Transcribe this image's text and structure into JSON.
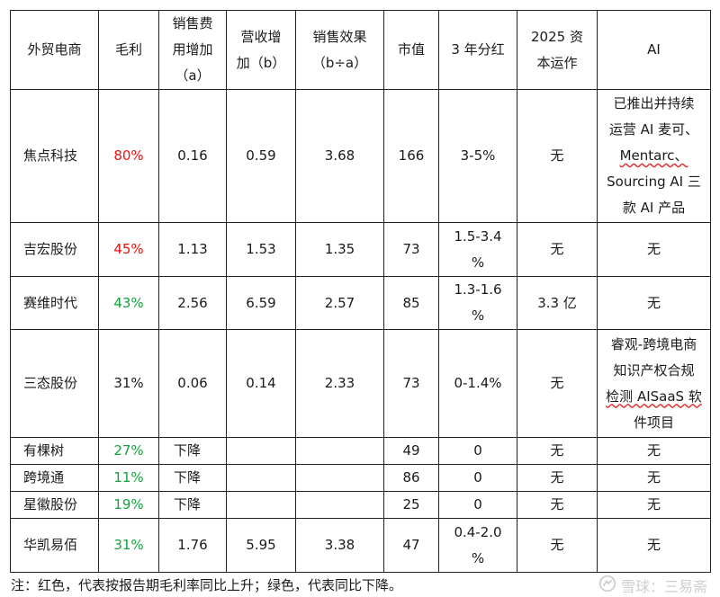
{
  "headers": {
    "company": "外贸电商",
    "margin": "毛利",
    "sales_exp_1": "销售费",
    "sales_exp_2": "用增加",
    "sales_exp_3": "（a）",
    "rev_1": "营收增",
    "rev_2": "加（b）",
    "effect_1": "销售效果",
    "effect_2": "（b÷a）",
    "mcap": "市值",
    "dividend": "3 年分红",
    "capital_1": "2025 资",
    "capital_2": "本运作",
    "ai": "AI"
  },
  "rows": [
    {
      "company": "焦点科技",
      "margin": "80%",
      "sales": "0.16",
      "rev": "0.59",
      "effect": "3.68",
      "mcap": "166",
      "dividend": "3-5%",
      "capital": "无",
      "ai_lines": [
        "已推出并持续",
        "运营 AI 麦可、",
        "Mentarc、",
        "Sourcing AI 三",
        "款 AI 产品"
      ]
    },
    {
      "company": "吉宏股份",
      "margin": "45%",
      "sales": "1.13",
      "rev": "1.53",
      "effect": "1.35",
      "mcap": "73",
      "dividend_lines": [
        "1.5-3.4",
        "%"
      ],
      "capital": "无",
      "ai": "无"
    },
    {
      "company": "赛维时代",
      "margin": "43%",
      "sales": "2.56",
      "rev": "6.59",
      "effect": "2.57",
      "mcap": "85",
      "dividend_lines": [
        "1.3-1.6",
        "%"
      ],
      "capital": "3.3 亿",
      "ai": "无"
    },
    {
      "company": "三态股份",
      "margin": "31%",
      "sales": "0.06",
      "rev": "0.14",
      "effect": "2.33",
      "mcap": "73",
      "dividend": "0-1.4%",
      "capital": "无",
      "ai_lines": [
        "睿观-跨境电商",
        "知识产权合规",
        "检测 AISaaS 软",
        "件项目"
      ]
    },
    {
      "company": "有棵树",
      "margin": "27%",
      "sales": "下降",
      "rev": "",
      "effect": "",
      "mcap": "49",
      "dividend": "0",
      "capital": "无",
      "ai": "无"
    },
    {
      "company": "跨境通",
      "margin": "11%",
      "sales": "下降",
      "rev": "",
      "effect": "",
      "mcap": "86",
      "dividend": "0",
      "capital": "无",
      "ai": "无"
    },
    {
      "company": "星徽股份",
      "margin": "19%",
      "sales": "下降",
      "rev": "",
      "effect": "",
      "mcap": "25",
      "dividend": "0",
      "capital": "无",
      "ai": "无"
    },
    {
      "company": "华凯易佰",
      "margin": "31%",
      "sales": "1.76",
      "rev": "5.95",
      "effect": "3.38",
      "mcap": "47",
      "dividend_lines": [
        "0.4-2.0",
        "%"
      ],
      "capital": "无",
      "ai": "无"
    }
  ],
  "note": "注：红色，代表按报告期毛利率同比上升；绿色，代表同比下降。",
  "watermark": "雪球：三易斋",
  "colors": {
    "up": "#ee1111",
    "down": "#13a23f",
    "border": "#222222"
  },
  "icons": {
    "watermark": "snowball-logo-icon"
  }
}
